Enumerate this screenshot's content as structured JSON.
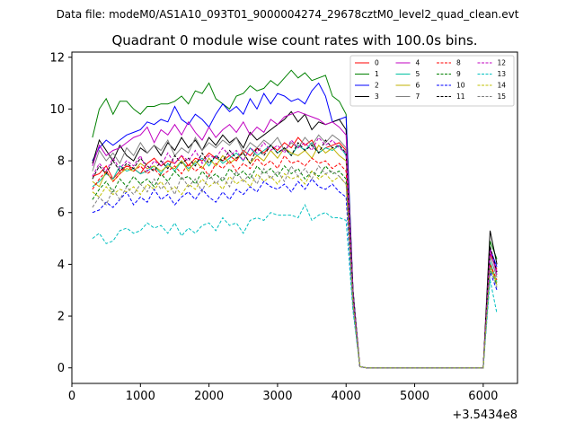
{
  "chart_data": {
    "type": "line",
    "suptitle": "Data file: modeM0/AS1A10_093T01_9000004274_29678cztM0_level2_quad_clean.evt",
    "title": "Quadrant 0 module wise count rates with 100.0s bins.",
    "xlabel": "",
    "ylabel": "",
    "x_offset_label": "+3.5434e8",
    "xlim": [
      0,
      6500
    ],
    "ylim": [
      -0.6,
      12.2
    ],
    "x_ticks": [
      0,
      1000,
      2000,
      3000,
      4000,
      5000,
      6000
    ],
    "x_tick_labels": [
      "0",
      "1000",
      "2000",
      "3000",
      "4000",
      "5000",
      "6000"
    ],
    "y_ticks": [
      0,
      2,
      4,
      6,
      8,
      10,
      12
    ],
    "y_tick_labels": [
      "0",
      "2",
      "4",
      "6",
      "8",
      "10",
      "12"
    ],
    "grid": false,
    "legend_position": "top-right",
    "legend_columns": 4,
    "x": [
      300,
      400,
      500,
      600,
      700,
      800,
      900,
      1000,
      1100,
      1200,
      1300,
      1400,
      1500,
      1600,
      1700,
      1800,
      1900,
      2000,
      2100,
      2200,
      2300,
      2400,
      2500,
      2600,
      2700,
      2800,
      2900,
      3000,
      3100,
      3200,
      3300,
      3400,
      3500,
      3600,
      3700,
      3800,
      3900,
      4000,
      4100,
      4200,
      4300,
      5900,
      6000,
      6100,
      6200
    ],
    "series": [
      {
        "name": "0",
        "color": "#ff0000",
        "dashed": false,
        "values": [
          7.4,
          7.5,
          7.8,
          7.3,
          7.6,
          7.8,
          7.7,
          7.5,
          7.9,
          8.1,
          7.8,
          8.0,
          7.9,
          8.2,
          7.8,
          8.1,
          8.0,
          8.3,
          8.1,
          8.0,
          8.2,
          8.0,
          8.4,
          8.2,
          8.5,
          8.3,
          8.6,
          8.4,
          8.7,
          8.5,
          8.9,
          8.6,
          8.8,
          8.3,
          8.5,
          8.6,
          8.7,
          8.4,
          2.8,
          0.05,
          0.0,
          0.0,
          0.0,
          4.4,
          3.8
        ]
      },
      {
        "name": "1",
        "color": "#008000",
        "dashed": false,
        "values": [
          8.9,
          10.0,
          10.4,
          9.8,
          10.3,
          10.3,
          10.0,
          9.8,
          10.1,
          10.1,
          10.2,
          10.2,
          10.3,
          10.5,
          10.2,
          10.7,
          10.6,
          11.0,
          10.4,
          10.2,
          10.0,
          10.5,
          10.6,
          10.9,
          10.7,
          10.8,
          11.1,
          10.9,
          11.2,
          11.5,
          11.2,
          11.4,
          11.1,
          11.2,
          11.3,
          10.5,
          10.3,
          9.8,
          3.0,
          0.05,
          0.0,
          0.0,
          0.0,
          4.9,
          4.2
        ]
      },
      {
        "name": "2",
        "color": "#0000ff",
        "dashed": false,
        "values": [
          8.0,
          8.5,
          8.8,
          8.6,
          8.8,
          9.0,
          9.1,
          9.2,
          9.5,
          9.4,
          9.6,
          9.5,
          10.1,
          9.6,
          9.4,
          9.8,
          9.6,
          9.3,
          9.8,
          10.2,
          9.9,
          10.1,
          9.8,
          10.4,
          10.0,
          10.6,
          10.2,
          10.6,
          10.5,
          10.3,
          10.4,
          10.2,
          10.7,
          11.0,
          10.5,
          9.5,
          9.6,
          9.7,
          3.0,
          0.05,
          0.0,
          0.0,
          0.0,
          4.6,
          3.9
        ]
      },
      {
        "name": "3",
        "color": "#000000",
        "dashed": false,
        "values": [
          7.9,
          8.8,
          8.4,
          8.0,
          8.6,
          8.2,
          8.0,
          8.5,
          8.3,
          8.6,
          8.2,
          8.7,
          8.4,
          8.9,
          8.5,
          8.8,
          8.4,
          8.9,
          8.6,
          9.0,
          8.7,
          8.9,
          8.5,
          9.1,
          8.8,
          9.0,
          9.2,
          9.4,
          9.6,
          9.9,
          9.5,
          9.8,
          9.2,
          9.5,
          9.4,
          9.5,
          9.6,
          9.2,
          3.0,
          0.05,
          0.0,
          0.0,
          0.0,
          5.3,
          4.0
        ]
      },
      {
        "name": "4",
        "color": "#c000c0",
        "dashed": false,
        "values": [
          7.8,
          8.6,
          8.2,
          8.4,
          8.5,
          8.7,
          8.9,
          9.0,
          9.3,
          8.7,
          9.2,
          9.0,
          9.4,
          9.0,
          9.5,
          9.1,
          8.8,
          9.3,
          8.9,
          9.2,
          9.4,
          9.1,
          9.5,
          9.0,
          9.3,
          9.1,
          9.6,
          9.4,
          9.7,
          9.8,
          9.9,
          9.8,
          9.7,
          9.6,
          9.4,
          9.5,
          9.3,
          9.0,
          2.9,
          0.05,
          0.0,
          0.0,
          0.0,
          4.6,
          3.6
        ]
      },
      {
        "name": "5",
        "color": "#00c0a0",
        "dashed": false,
        "values": [
          7.0,
          7.2,
          7.5,
          7.3,
          7.8,
          7.6,
          7.7,
          7.5,
          7.6,
          7.8,
          7.5,
          7.9,
          7.6,
          8.0,
          7.7,
          7.9,
          8.1,
          7.8,
          8.2,
          7.9,
          8.1,
          8.3,
          8.0,
          8.5,
          8.2,
          8.4,
          8.6,
          8.3,
          8.5,
          8.2,
          8.6,
          8.4,
          8.7,
          8.3,
          8.5,
          8.4,
          8.6,
          8.2,
          2.7,
          0.05,
          0.0,
          0.0,
          0.0,
          4.1,
          3.3
        ]
      },
      {
        "name": "6",
        "color": "#c0b000",
        "dashed": false,
        "values": [
          7.2,
          7.0,
          7.6,
          7.2,
          7.5,
          7.7,
          7.6,
          7.9,
          7.7,
          7.8,
          7.6,
          7.8,
          7.7,
          8.0,
          7.6,
          8.0,
          7.7,
          8.1,
          7.8,
          8.2,
          7.9,
          8.1,
          8.3,
          7.9,
          8.2,
          8.0,
          8.4,
          8.1,
          8.5,
          8.3,
          8.2,
          8.4,
          8.1,
          8.6,
          8.3,
          8.5,
          8.2,
          8.0,
          2.7,
          0.05,
          0.0,
          0.0,
          0.0,
          4.0,
          3.2
        ]
      },
      {
        "name": "7",
        "color": "#808080",
        "dashed": false,
        "values": [
          7.6,
          8.4,
          8.0,
          8.3,
          7.9,
          8.5,
          8.2,
          8.7,
          8.3,
          8.6,
          8.4,
          8.8,
          8.2,
          8.5,
          8.3,
          8.9,
          8.4,
          8.7,
          8.5,
          8.8,
          8.6,
          8.9,
          8.3,
          8.7,
          8.5,
          8.8,
          8.6,
          8.9,
          8.4,
          8.7,
          8.5,
          8.9,
          8.6,
          9.0,
          8.7,
          9.0,
          8.8,
          8.5,
          2.9,
          0.05,
          0.0,
          0.0,
          0.0,
          4.3,
          3.5
        ]
      },
      {
        "name": "8",
        "color": "#ff0000",
        "dashed": true,
        "values": [
          6.9,
          7.3,
          7.6,
          7.2,
          7.5,
          7.8,
          7.6,
          7.8,
          7.5,
          7.7,
          7.4,
          7.6,
          7.8,
          7.5,
          7.9,
          7.6,
          7.8,
          7.4,
          7.9,
          7.7,
          8.0,
          7.6,
          7.9,
          7.7,
          8.1,
          7.8,
          8.0,
          7.7,
          8.2,
          7.9,
          8.0,
          7.8,
          8.1,
          7.9,
          8.0,
          7.7,
          7.9,
          7.6,
          2.6,
          0.05,
          0.0,
          0.0,
          0.0,
          4.0,
          3.4
        ]
      },
      {
        "name": "9",
        "color": "#008000",
        "dashed": true,
        "values": [
          6.5,
          6.9,
          7.2,
          6.8,
          7.3,
          7.0,
          7.4,
          7.1,
          7.3,
          7.0,
          7.5,
          7.2,
          7.6,
          7.3,
          7.4,
          7.1,
          7.6,
          7.3,
          7.5,
          7.2,
          7.7,
          7.4,
          7.6,
          7.3,
          7.8,
          7.5,
          7.7,
          7.4,
          7.8,
          7.5,
          7.7,
          7.3,
          7.6,
          7.4,
          7.8,
          7.5,
          7.6,
          7.3,
          2.5,
          0.05,
          0.0,
          0.0,
          0.0,
          3.8,
          3.2
        ]
      },
      {
        "name": "10",
        "color": "#0000ff",
        "dashed": true,
        "values": [
          6.0,
          6.1,
          6.4,
          6.2,
          6.5,
          6.8,
          6.3,
          6.6,
          6.4,
          6.9,
          6.5,
          6.7,
          6.3,
          6.6,
          6.8,
          6.5,
          6.9,
          6.6,
          6.4,
          6.8,
          6.5,
          6.9,
          6.7,
          7.0,
          6.8,
          7.2,
          7.0,
          6.9,
          7.1,
          6.8,
          7.2,
          6.9,
          7.3,
          7.0,
          6.9,
          7.1,
          6.8,
          6.6,
          2.3,
          0.05,
          0.0,
          0.0,
          0.0,
          3.7,
          3.0
        ]
      },
      {
        "name": "11",
        "color": "#000000",
        "dashed": true,
        "values": [
          7.3,
          7.8,
          7.5,
          8.0,
          7.6,
          7.9,
          7.7,
          8.1,
          7.8,
          7.6,
          8.0,
          7.7,
          8.2,
          7.9,
          8.1,
          7.8,
          8.3,
          7.9,
          8.2,
          8.0,
          8.4,
          8.1,
          8.3,
          7.9,
          8.5,
          8.2,
          8.6,
          8.3,
          8.5,
          8.2,
          8.7,
          8.4,
          8.6,
          8.3,
          8.8,
          8.5,
          8.6,
          8.3,
          2.8,
          0.05,
          0.0,
          0.0,
          0.0,
          4.7,
          3.7
        ]
      },
      {
        "name": "12",
        "color": "#c000c0",
        "dashed": true,
        "values": [
          7.4,
          7.9,
          7.6,
          8.1,
          7.7,
          8.0,
          7.8,
          8.2,
          7.6,
          8.0,
          7.8,
          8.3,
          7.9,
          8.2,
          8.0,
          8.4,
          7.9,
          8.2,
          8.1,
          8.5,
          8.2,
          8.4,
          8.0,
          8.5,
          8.3,
          8.7,
          8.4,
          8.6,
          8.3,
          8.8,
          8.5,
          8.7,
          8.4,
          8.9,
          8.6,
          8.8,
          8.5,
          8.3,
          2.8,
          0.05,
          0.0,
          0.0,
          0.0,
          4.5,
          3.7
        ]
      },
      {
        "name": "13",
        "color": "#00c0c0",
        "dashed": true,
        "values": [
          5.0,
          5.2,
          4.8,
          4.9,
          5.3,
          5.4,
          5.2,
          5.3,
          5.6,
          5.4,
          5.5,
          5.2,
          5.6,
          5.1,
          5.4,
          5.2,
          5.5,
          5.6,
          5.3,
          5.8,
          5.5,
          5.6,
          5.2,
          5.7,
          5.8,
          5.7,
          6.0,
          5.9,
          5.9,
          5.9,
          5.8,
          6.3,
          5.7,
          5.9,
          6.0,
          5.8,
          5.8,
          5.7,
          2.2,
          0.05,
          0.0,
          0.0,
          0.0,
          3.4,
          2.1
        ]
      },
      {
        "name": "14",
        "color": "#c0c000",
        "dashed": true,
        "values": [
          6.8,
          6.6,
          7.0,
          6.7,
          6.9,
          6.8,
          7.0,
          6.7,
          7.1,
          6.9,
          7.2,
          6.8,
          7.0,
          6.7,
          7.1,
          6.9,
          7.3,
          7.0,
          7.2,
          6.9,
          7.4,
          7.1,
          7.3,
          7.0,
          7.5,
          7.2,
          7.4,
          7.1,
          7.5,
          7.3,
          7.4,
          7.1,
          7.6,
          7.3,
          7.5,
          7.2,
          7.4,
          7.1,
          2.5,
          0.05,
          0.0,
          0.0,
          0.0,
          3.9,
          3.3
        ]
      },
      {
        "name": "15",
        "color": "#808080",
        "dashed": true,
        "values": [
          6.2,
          6.6,
          6.3,
          6.9,
          6.5,
          7.0,
          6.7,
          7.1,
          6.8,
          7.3,
          6.9,
          7.2,
          6.7,
          7.4,
          7.0,
          7.3,
          6.8,
          7.5,
          7.1,
          7.4,
          7.0,
          7.6,
          7.2,
          7.5,
          7.1,
          7.7,
          7.3,
          7.6,
          7.2,
          7.8,
          7.4,
          7.7,
          7.3,
          7.8,
          7.5,
          7.6,
          7.4,
          7.1,
          2.5,
          0.05,
          0.0,
          0.0,
          0.0,
          3.9,
          3.1
        ]
      }
    ]
  }
}
